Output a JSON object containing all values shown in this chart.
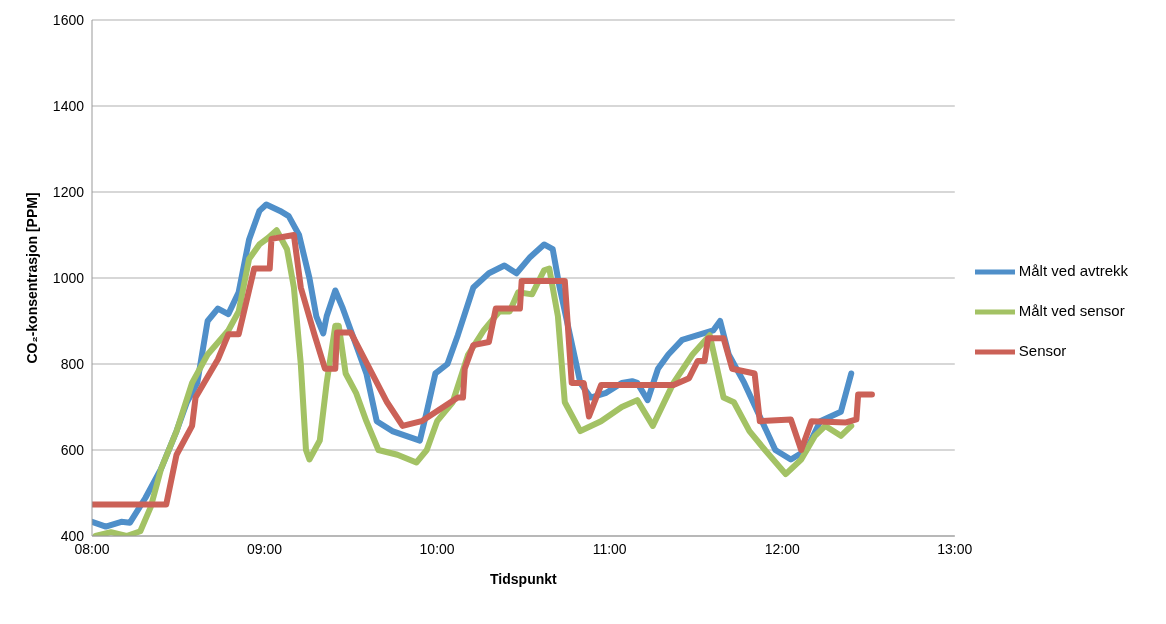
{
  "chart_data": {
    "type": "line",
    "xlabel": "Tidspunkt",
    "ylabel": "CO₂-konsentrasjon [PPM]",
    "xlim": [
      8,
      13
    ],
    "xticks": [
      {
        "value": 8,
        "label": "08:00"
      },
      {
        "value": 9,
        "label": "09:00"
      },
      {
        "value": 10,
        "label": "10:00"
      },
      {
        "value": 11,
        "label": "11:00"
      },
      {
        "value": 12,
        "label": "12:00"
      },
      {
        "value": 13,
        "label": "13:00"
      }
    ],
    "ylim": [
      400,
      1600
    ],
    "yticks": [
      400,
      600,
      800,
      1000,
      1200,
      1400,
      1600
    ],
    "grid": "y",
    "legend": "right",
    "marker": "none",
    "line_style": "solid",
    "series": [
      {
        "name": "Målt ved avtrekk",
        "color": "#4f8fc9",
        "x": [
          8.0,
          8.08,
          8.17,
          8.22,
          8.31,
          8.4,
          8.49,
          8.55,
          8.61,
          8.67,
          8.73,
          8.79,
          8.85,
          8.91,
          8.97,
          9.01,
          9.09,
          9.14,
          9.2,
          9.26,
          9.3,
          9.34,
          9.36,
          9.41,
          9.45,
          9.5,
          9.59,
          9.65,
          9.74,
          9.82,
          9.9,
          9.94,
          9.99,
          10.06,
          10.12,
          10.21,
          10.3,
          10.39,
          10.46,
          10.54,
          10.62,
          10.67,
          10.71,
          10.77,
          10.83,
          10.89,
          10.98,
          11.07,
          11.13,
          11.16,
          11.22,
          11.28,
          11.34,
          11.42,
          11.51,
          11.6,
          11.64,
          11.69,
          11.78,
          11.87,
          11.96,
          12.05,
          12.14,
          12.22,
          12.28,
          12.34,
          12.4
        ],
        "values": [
          433,
          422,
          433,
          431,
          489,
          556,
          644,
          711,
          756,
          900,
          929,
          916,
          967,
          1089,
          1156,
          1171,
          1156,
          1144,
          1100,
          1000,
          911,
          871,
          911,
          971,
          933,
          878,
          778,
          667,
          644,
          633,
          622,
          689,
          778,
          800,
          867,
          978,
          1011,
          1029,
          1011,
          1049,
          1078,
          1067,
          978,
          867,
          756,
          722,
          733,
          756,
          760,
          756,
          716,
          789,
          822,
          856,
          867,
          878,
          900,
          822,
          756,
          678,
          600,
          578,
          600,
          667,
          678,
          689,
          778
        ]
      },
      {
        "name": "Målt ved sensor",
        "color": "#a3c264",
        "x": [
          8.02,
          8.11,
          8.2,
          8.28,
          8.34,
          8.4,
          8.49,
          8.58,
          8.67,
          8.79,
          8.85,
          8.91,
          8.97,
          9.02,
          9.07,
          9.13,
          9.17,
          9.21,
          9.24,
          9.26,
          9.32,
          9.36,
          9.41,
          9.43,
          9.47,
          9.53,
          9.59,
          9.66,
          9.77,
          9.88,
          9.94,
          10.0,
          10.09,
          10.18,
          10.27,
          10.36,
          10.42,
          10.47,
          10.55,
          10.62,
          10.65,
          10.7,
          10.74,
          10.83,
          10.95,
          11.07,
          11.16,
          11.25,
          11.37,
          11.48,
          11.58,
          11.66,
          11.72,
          11.81,
          11.9,
          12.02,
          12.11,
          12.19,
          12.25,
          12.34,
          12.4
        ],
        "values": [
          400,
          409,
          400,
          411,
          467,
          556,
          644,
          756,
          822,
          878,
          922,
          1044,
          1078,
          1093,
          1111,
          1067,
          978,
          800,
          600,
          578,
          622,
          756,
          889,
          889,
          778,
          733,
          667,
          600,
          589,
          571,
          600,
          667,
          711,
          822,
          878,
          922,
          922,
          967,
          962,
          1018,
          1022,
          911,
          711,
          644,
          667,
          700,
          716,
          656,
          756,
          822,
          867,
          722,
          711,
          644,
          600,
          544,
          578,
          633,
          656,
          633,
          656
        ]
      },
      {
        "name": "Sensor",
        "color": "#cb6157",
        "x": [
          8.0,
          8.43,
          8.49,
          8.58,
          8.6,
          8.73,
          8.79,
          8.85,
          8.94,
          9.03,
          9.04,
          9.17,
          9.21,
          9.29,
          9.35,
          9.41,
          9.42,
          9.5,
          9.71,
          9.8,
          9.91,
          10.12,
          10.15,
          10.16,
          10.21,
          10.3,
          10.34,
          10.48,
          10.49,
          10.74,
          10.78,
          10.85,
          10.88,
          10.95,
          11.37,
          11.46,
          11.51,
          11.55,
          11.57,
          11.66,
          11.71,
          11.84,
          11.87,
          12.05,
          12.11,
          12.17,
          12.37,
          12.43,
          12.44,
          12.52
        ],
        "values": [
          473,
          473,
          589,
          656,
          722,
          811,
          869,
          869,
          1022,
          1022,
          1091,
          1100,
          978,
          867,
          789,
          789,
          873,
          873,
          711,
          656,
          667,
          722,
          722,
          789,
          844,
          851,
          929,
          929,
          993,
          993,
          756,
          756,
          678,
          751,
          751,
          767,
          807,
          807,
          860,
          860,
          789,
          778,
          667,
          671,
          600,
          667,
          664,
          671,
          729,
          729
        ]
      }
    ]
  }
}
